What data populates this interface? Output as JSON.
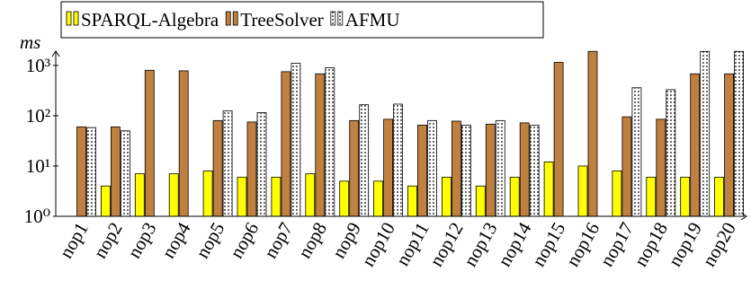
{
  "chart_data": {
    "type": "bar",
    "ylabel": "ms",
    "log_scale": true,
    "categories": [
      "nop1",
      "nop2",
      "nop3",
      "nop4",
      "nop5",
      "nop6",
      "nop7",
      "nop8",
      "nop9",
      "nop10",
      "nop11",
      "nop12",
      "nop13",
      "nop14",
      "nop15",
      "nop16",
      "nop17",
      "nop18",
      "nop19",
      "nop20"
    ],
    "series": [
      {
        "name": "SPARQL-Algebra",
        "color": "#ffff00",
        "values": [
          null,
          4,
          7,
          7,
          8,
          6,
          6,
          7,
          5,
          5,
          4,
          6,
          4,
          6,
          12,
          10,
          8,
          6,
          6,
          6
        ]
      },
      {
        "name": "TreeSolver",
        "color": "#c0803f",
        "values": [
          60,
          60,
          800,
          780,
          80,
          75,
          750,
          680,
          80,
          85,
          65,
          78,
          68,
          72,
          1150,
          1900,
          95,
          85,
          680,
          680
        ]
      },
      {
        "name": "AFMU",
        "color": "#ffffff",
        "pattern": "dots",
        "values": [
          58,
          50,
          null,
          null,
          125,
          115,
          1100,
          900,
          165,
          170,
          80,
          65,
          80,
          65,
          null,
          null,
          360,
          330,
          1900,
          1900
        ]
      }
    ],
    "ylim": [
      1,
      2000
    ],
    "yticks": [
      {
        "value": 1,
        "label": "10⁰"
      },
      {
        "value": 10,
        "label": "10¹"
      },
      {
        "value": 100,
        "label": "10²"
      },
      {
        "value": 1000,
        "label": "10³"
      }
    ],
    "legend": "top-left"
  }
}
